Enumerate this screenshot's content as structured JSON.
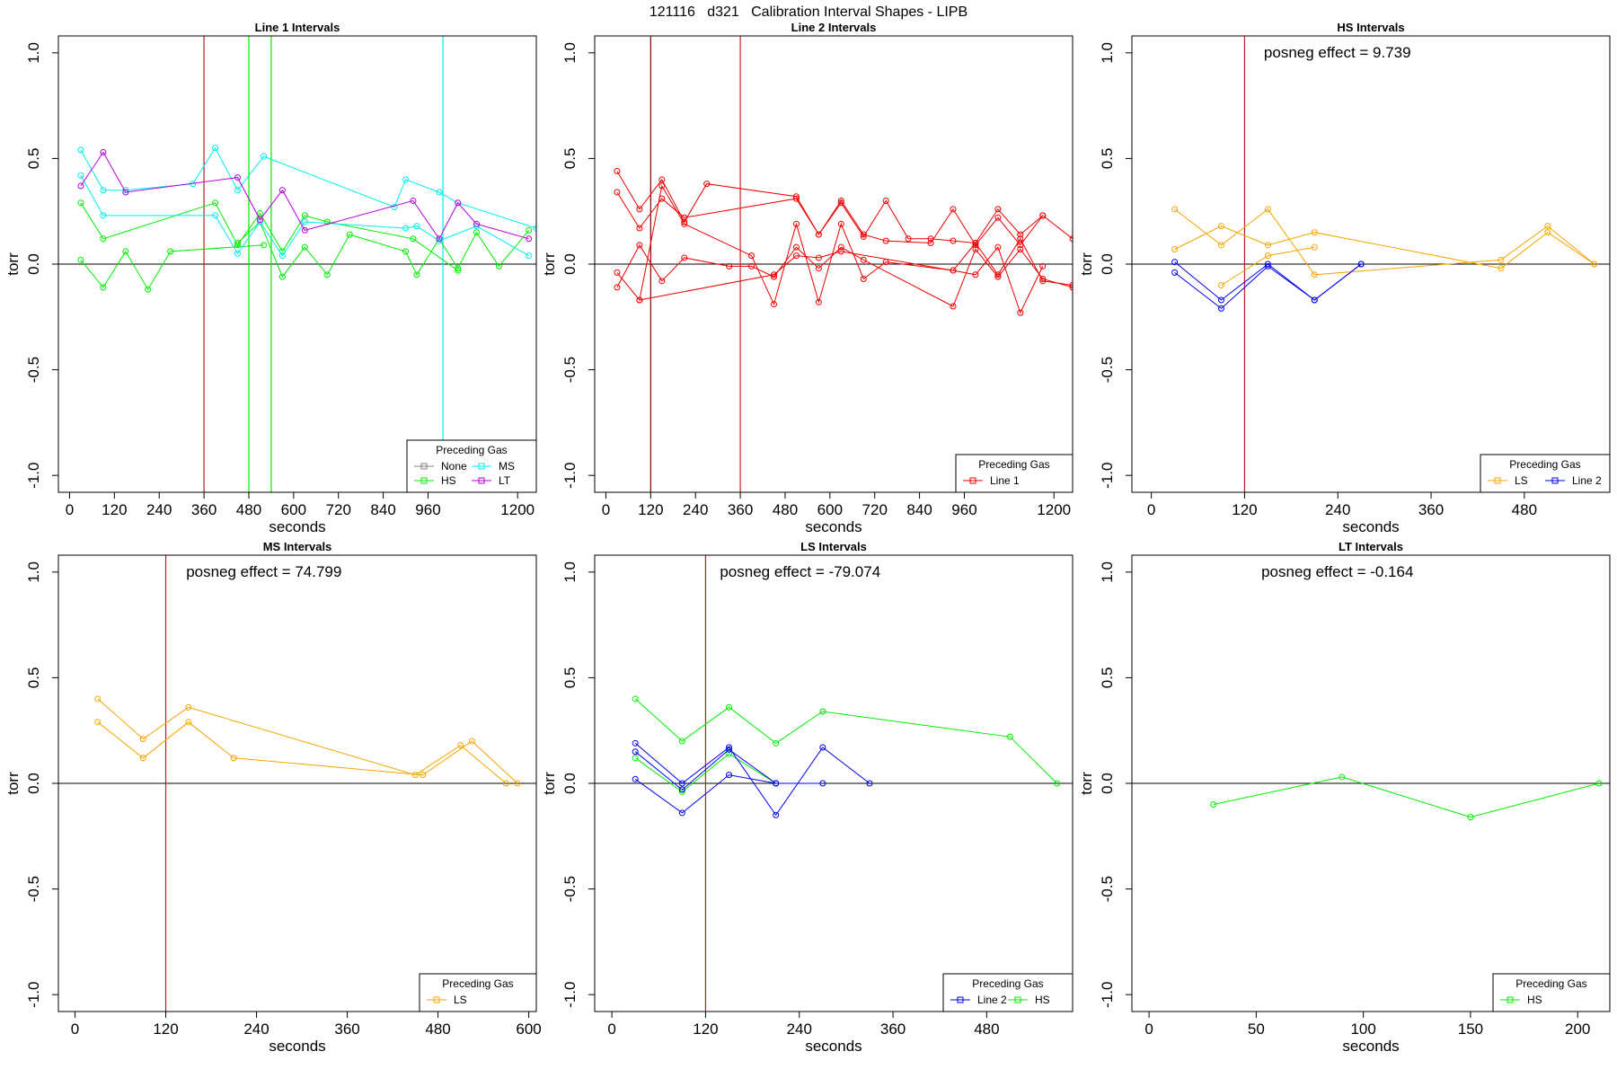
{
  "figure_title": "121116   d321   Calibration Interval Shapes - LIPB",
  "chart_data": [
    {
      "type": "line",
      "title": "Line 1 Intervals",
      "xlabel": "seconds",
      "ylabel": "torr",
      "xlim": [
        -30,
        1250
      ],
      "ylim": [
        -1.08,
        1.08
      ],
      "xticks": [
        0,
        120,
        240,
        360,
        480,
        600,
        720,
        840,
        960,
        1200
      ],
      "yticks": [
        1.0,
        0.5,
        0.0,
        -0.5,
        -1.0
      ],
      "ytick_labels": [
        "1.0",
        "0.5",
        "0.0",
        "-0.5",
        "-1.0"
      ],
      "hline": 0,
      "vlines": [
        {
          "x": 360,
          "color": "#b22222"
        },
        {
          "x": 480,
          "color": "#00ee00"
        },
        {
          "x": 540,
          "color": "#00ee00"
        },
        {
          "x": 1000,
          "color": "#00eeee"
        }
      ],
      "annotation": "",
      "legend": {
        "title": "Preceding Gas",
        "columns": 2,
        "entries": [
          {
            "label": "None",
            "color": "#808080"
          },
          {
            "label": "MS",
            "color": "#00eeee"
          },
          {
            "label": "HS",
            "color": "#00ee00"
          },
          {
            "label": "LT",
            "color": "#bb00dd"
          }
        ]
      },
      "series": [
        {
          "color": "#00ee00",
          "x": [
            30,
            90,
            150,
            210,
            270,
            520
          ],
          "y": [
            0.02,
            -0.11,
            0.06,
            -0.12,
            0.06,
            0.09
          ]
        },
        {
          "color": "#00ee00",
          "x": [
            30,
            90,
            390,
            450,
            510,
            570,
            630,
            690,
            920,
            1040
          ],
          "y": [
            0.29,
            0.12,
            0.29,
            0.09,
            0.24,
            0.06,
            0.23,
            0.2,
            0.12,
            -0.03
          ]
        },
        {
          "color": "#00ee00",
          "x": [
            450,
            510,
            570,
            630,
            690,
            750,
            900,
            930,
            990,
            1040,
            1090,
            1150,
            1230
          ],
          "y": [
            0.1,
            0.2,
            -0.06,
            0.08,
            -0.05,
            0.14,
            0.06,
            -0.05,
            0.12,
            -0.02,
            0.15,
            -0.01,
            0.16
          ]
        },
        {
          "color": "#00eeee",
          "x": [
            30,
            90,
            150,
            330,
            390,
            450,
            520,
            870,
            900,
            990,
            1040,
            1250
          ],
          "y": [
            0.54,
            0.35,
            0.35,
            0.38,
            0.55,
            0.35,
            0.51,
            0.27,
            0.4,
            0.34,
            0.29,
            0.17
          ]
        },
        {
          "color": "#00eeee",
          "x": [
            30,
            90,
            390,
            450,
            510,
            570,
            630,
            900,
            930,
            990,
            1090,
            1230
          ],
          "y": [
            0.42,
            0.23,
            0.23,
            0.05,
            0.2,
            0.04,
            0.2,
            0.17,
            0.18,
            0.11,
            0.18,
            0.04
          ]
        },
        {
          "color": "#bb00dd",
          "x": [
            30,
            90,
            150,
            450,
            510,
            570,
            630,
            920,
            990,
            1040,
            1090,
            1230
          ],
          "y": [
            0.37,
            0.53,
            0.34,
            0.41,
            0.21,
            0.35,
            0.16,
            0.3,
            0.12,
            0.29,
            0.19,
            0.12
          ]
        }
      ]
    },
    {
      "type": "line",
      "title": "Line 2 Intervals",
      "xlabel": "seconds",
      "ylabel": "torr",
      "xlim": [
        -30,
        1250
      ],
      "ylim": [
        -1.08,
        1.08
      ],
      "xticks": [
        0,
        120,
        240,
        360,
        480,
        600,
        720,
        840,
        960,
        1200
      ],
      "yticks": [
        1.0,
        0.5,
        0.0,
        -0.5,
        -1.0
      ],
      "ytick_labels": [
        "1.0",
        "0.5",
        "0.0",
        "-0.5",
        "-1.0"
      ],
      "hline": 0,
      "vlines": [
        {
          "x": 120,
          "color": "#800000"
        },
        {
          "x": 360,
          "color": "#cc2222"
        }
      ],
      "annotation": "",
      "legend": {
        "title": "Preceding Gas",
        "columns": 1,
        "entries": [
          {
            "label": "Line 1",
            "color": "#ee0000"
          }
        ]
      },
      "series": [
        {
          "color": "#ee0000",
          "x": [
            30,
            90,
            150,
            210,
            270,
            510,
            570,
            630,
            690,
            750,
            810,
            870,
            930,
            990,
            1050,
            1110,
            1170
          ],
          "y": [
            0.44,
            0.26,
            0.4,
            0.2,
            0.38,
            0.32,
            0.14,
            0.29,
            0.13,
            0.3,
            0.12,
            0.12,
            0.11,
            0.1,
            0.26,
            0.14,
            0.23
          ]
        },
        {
          "color": "#ee0000",
          "x": [
            30,
            90,
            150,
            210,
            510,
            570,
            630,
            690,
            750,
            870,
            930,
            990,
            1050,
            1110,
            1170,
            1250
          ],
          "y": [
            0.34,
            0.17,
            0.31,
            0.22,
            0.31,
            0.14,
            0.3,
            0.14,
            0.11,
            0.1,
            0.26,
            0.09,
            0.22,
            0.09,
            0.23,
            0.12
          ]
        },
        {
          "color": "#ee0000",
          "x": [
            30,
            90,
            150,
            210,
            390,
            450,
            510,
            570,
            630,
            690,
            750,
            930,
            990,
            1050,
            1110,
            1170,
            1250
          ],
          "y": [
            -0.04,
            -0.17,
            0.37,
            0.19,
            0.04,
            -0.19,
            0.19,
            -0.18,
            0.19,
            -0.07,
            0.01,
            -0.03,
            0.1,
            -0.05,
            0.12,
            -0.08,
            -0.1
          ]
        },
        {
          "color": "#ee0000",
          "x": [
            30,
            90,
            150,
            210,
            330,
            390,
            450,
            510,
            570,
            630,
            690,
            930,
            990,
            1050,
            1110,
            1170,
            1250
          ],
          "y": [
            -0.11,
            0.09,
            -0.08,
            0.03,
            -0.01,
            -0.01,
            -0.06,
            0.08,
            -0.02,
            0.08,
            0.02,
            -0.2,
            0.07,
            -0.06,
            0.07,
            -0.07,
            -0.11
          ]
        },
        {
          "color": "#ee0000",
          "x": [
            90,
            450,
            510,
            570,
            630,
            930,
            990,
            1050,
            1110,
            1170
          ],
          "y": [
            -0.17,
            -0.05,
            0.04,
            0.03,
            0.06,
            -0.03,
            -0.05,
            0.08,
            -0.23,
            -0.01
          ]
        }
      ]
    },
    {
      "type": "line",
      "title": "HS Intervals",
      "xlabel": "seconds",
      "ylabel": "torr",
      "xlim": [
        -25,
        590
      ],
      "ylim": [
        -1.08,
        1.08
      ],
      "xticks": [
        0,
        120,
        240,
        360,
        480
      ],
      "yticks": [
        1.0,
        0.5,
        0.0,
        -0.5,
        -1.0
      ],
      "ytick_labels": [
        "1.0",
        "0.5",
        "0.0",
        "-0.5",
        "-1.0"
      ],
      "hline": 0,
      "vlines": [
        {
          "x": 120,
          "color": "#b22222"
        }
      ],
      "annotation": "posneg effect = 9.739",
      "legend": {
        "title": "Preceding Gas",
        "columns": 2,
        "entries": [
          {
            "label": "LS",
            "color": "#f5a500"
          },
          {
            "label": "Line 2",
            "color": "#0000ee"
          }
        ]
      },
      "series": [
        {
          "color": "#f5a500",
          "x": [
            30,
            90,
            150,
            210,
            450,
            510,
            570
          ],
          "y": [
            0.26,
            0.09,
            0.26,
            -0.05,
            0.02,
            0.18,
            0.0
          ]
        },
        {
          "color": "#f5a500",
          "x": [
            30,
            90,
            150,
            210,
            450,
            510,
            570
          ],
          "y": [
            0.07,
            0.18,
            0.09,
            0.15,
            -0.02,
            0.15,
            0.0
          ]
        },
        {
          "color": "#f5a500",
          "x": [
            90,
            150,
            210
          ],
          "y": [
            -0.1,
            0.04,
            0.08
          ]
        },
        {
          "color": "#0000ee",
          "x": [
            30,
            90,
            150,
            210,
            270
          ],
          "y": [
            0.01,
            -0.17,
            0.0,
            -0.17,
            0.0
          ]
        },
        {
          "color": "#0000ee",
          "x": [
            30,
            90,
            150,
            210,
            270
          ],
          "y": [
            -0.04,
            -0.21,
            -0.01,
            -0.17,
            0.0
          ]
        }
      ]
    },
    {
      "type": "line",
      "title": "MS Intervals",
      "xlabel": "seconds",
      "ylabel": "torr",
      "xlim": [
        -22,
        610
      ],
      "ylim": [
        -1.08,
        1.08
      ],
      "xticks": [
        0,
        120,
        240,
        360,
        480,
        600
      ],
      "yticks": [
        1.0,
        0.5,
        0.0,
        -0.5,
        -1.0
      ],
      "ytick_labels": [
        "1.0",
        "0.5",
        "0.0",
        "-0.5",
        "-1.0"
      ],
      "hline": 0,
      "vlines": [
        {
          "x": 120,
          "color": "#b22222"
        }
      ],
      "annotation": "posneg effect = 74.799",
      "legend": {
        "title": "Preceding Gas",
        "columns": 1,
        "entries": [
          {
            "label": "LS",
            "color": "#f5a500"
          }
        ]
      },
      "series": [
        {
          "color": "#f5a500",
          "x": [
            30,
            90,
            150,
            450,
            510,
            570
          ],
          "y": [
            0.4,
            0.21,
            0.36,
            0.04,
            0.18,
            0.0
          ]
        },
        {
          "color": "#f5a500",
          "x": [
            30,
            90,
            150,
            210,
            460,
            525,
            585
          ],
          "y": [
            0.29,
            0.12,
            0.29,
            0.12,
            0.04,
            0.2,
            0.0
          ]
        }
      ]
    },
    {
      "type": "line",
      "title": "LS Intervals",
      "xlabel": "seconds",
      "ylabel": "torr",
      "xlim": [
        -22,
        590
      ],
      "ylim": [
        -1.08,
        1.08
      ],
      "xticks": [
        0,
        120,
        240,
        360,
        480
      ],
      "yticks": [
        1.0,
        0.5,
        0.0,
        -0.5,
        -1.0
      ],
      "ytick_labels": [
        "1.0",
        "0.5",
        "0.0",
        "-0.5",
        "-1.0"
      ],
      "hline": 0,
      "vlines": [
        {
          "x": 120,
          "color": "#b22222"
        }
      ],
      "annotation": "posneg effect = -79.074",
      "legend": {
        "title": "Preceding Gas",
        "columns": 2,
        "entries": [
          {
            "label": "Line 2",
            "color": "#0000ee"
          },
          {
            "label": "HS",
            "color": "#00ee00"
          }
        ]
      },
      "series": [
        {
          "color": "#00ee00",
          "x": [
            30,
            90,
            150,
            210,
            270,
            510,
            570
          ],
          "y": [
            0.4,
            0.2,
            0.36,
            0.19,
            0.34,
            0.22,
            0.0
          ]
        },
        {
          "color": "#00ee00",
          "x": [
            30,
            90,
            150,
            210
          ],
          "y": [
            0.12,
            -0.04,
            0.14,
            0.0
          ]
        },
        {
          "color": "#0000ee",
          "x": [
            30,
            90,
            150,
            210,
            270,
            330
          ],
          "y": [
            0.19,
            0.0,
            0.17,
            -0.15,
            0.17,
            0.0
          ]
        },
        {
          "color": "#0000ee",
          "x": [
            30,
            90,
            150,
            210,
            270
          ],
          "y": [
            0.15,
            -0.03,
            0.16,
            0.0,
            0.0
          ]
        },
        {
          "color": "#0000ee",
          "x": [
            30,
            90,
            150,
            210
          ],
          "y": [
            0.02,
            -0.14,
            0.04,
            0.0
          ]
        }
      ]
    },
    {
      "type": "line",
      "title": "LT Intervals",
      "xlabel": "seconds",
      "ylabel": "torr",
      "xlim": [
        -8,
        215
      ],
      "ylim": [
        -1.08,
        1.08
      ],
      "xticks": [
        0,
        50,
        100,
        150,
        200
      ],
      "yticks": [
        1.0,
        0.5,
        0.0,
        -0.5,
        -1.0
      ],
      "ytick_labels": [
        "1.0",
        "0.5",
        "0.0",
        "-0.5",
        "-1.0"
      ],
      "hline": 0,
      "vlines": [],
      "annotation": "posneg effect = -0.164",
      "legend": {
        "title": "Preceding Gas",
        "columns": 1,
        "entries": [
          {
            "label": "HS",
            "color": "#00ee00"
          }
        ]
      },
      "series": [
        {
          "color": "#00ee00",
          "x": [
            30,
            90,
            150,
            210
          ],
          "y": [
            -0.1,
            0.03,
            -0.16,
            0.0
          ]
        }
      ]
    }
  ]
}
